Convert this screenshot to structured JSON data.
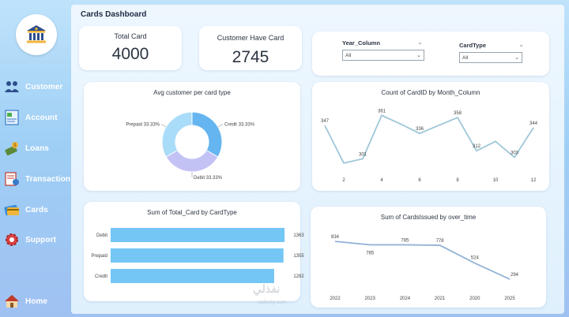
{
  "dashboard": {
    "title": "Cards Dashboard"
  },
  "sidebar": {
    "items": [
      {
        "label": "Customer",
        "icon": "users-icon"
      },
      {
        "label": "Account",
        "icon": "account-icon"
      },
      {
        "label": "Loans",
        "icon": "loans-icon"
      },
      {
        "label": "Transaction",
        "icon": "transaction-icon"
      },
      {
        "label": "Cards",
        "icon": "credit-card-icon"
      },
      {
        "label": "Support",
        "icon": "support-gear-icon"
      },
      {
        "label": "Home",
        "icon": "home-icon"
      }
    ]
  },
  "kpis": {
    "total_card": {
      "label": "Total Card",
      "value": "4000"
    },
    "customer_have_card": {
      "label": "Customer Have Card",
      "value": "2745"
    }
  },
  "slicers": {
    "year": {
      "title": "Year_Column",
      "value": "All"
    },
    "cardtype": {
      "title": "CardType",
      "value": "All"
    }
  },
  "watermark": {
    "text": "نفذلي",
    "sub": "nafezly.com"
  },
  "colors": {
    "credit": "#64b5f0",
    "prepaid": "#a9dcf8",
    "debit": "#c3c2f5",
    "bar": "#74c6f4",
    "line": "#9fc7d9",
    "line2": "#93b4d6"
  },
  "chart_data": [
    {
      "type": "pie",
      "title": "Avg customer per card type",
      "donut": true,
      "slices": [
        {
          "label": "Credit 33.33%",
          "value": 33.33
        },
        {
          "label": "Debit 33.33%",
          "value": 33.33
        },
        {
          "label": "Prepaid 33.33%",
          "value": 33.33
        }
      ]
    },
    {
      "type": "line",
      "title": "Count of CardID by Month_Column",
      "x": [
        1,
        2,
        3,
        4,
        5,
        6,
        7,
        8,
        9,
        10,
        11,
        12
      ],
      "values": [
        347,
        295,
        301,
        361,
        349,
        336,
        347,
        358,
        312,
        325,
        303,
        344
      ],
      "data_labels": [
        {
          "i": 0,
          "text": "347"
        },
        {
          "i": 2,
          "text": "301"
        },
        {
          "i": 3,
          "text": "361"
        },
        {
          "i": 5,
          "text": "336"
        },
        {
          "i": 7,
          "text": "358"
        },
        {
          "i": 8,
          "text": "312"
        },
        {
          "i": 10,
          "text": "303"
        },
        {
          "i": 11,
          "text": "344"
        }
      ],
      "tick_labels": [
        "2",
        "4",
        "6",
        "8",
        "10",
        "12"
      ],
      "ylim": [
        285,
        370
      ]
    },
    {
      "type": "bar",
      "orientation": "horizontal",
      "title": "Sum of Total_Card by CardType",
      "categories": [
        "Debit",
        "Prepaid",
        "Credit"
      ],
      "values": [
        1363,
        1355,
        1282
      ],
      "xlim": [
        0,
        1363
      ]
    },
    {
      "type": "line",
      "title": "Sum of CardsIssued by over_time",
      "categories": [
        "2022",
        "2023",
        "2024",
        "2021",
        "2020",
        "2025"
      ],
      "values": [
        834,
        785,
        785,
        778,
        524,
        294
      ],
      "ylim": [
        250,
        880
      ]
    }
  ]
}
